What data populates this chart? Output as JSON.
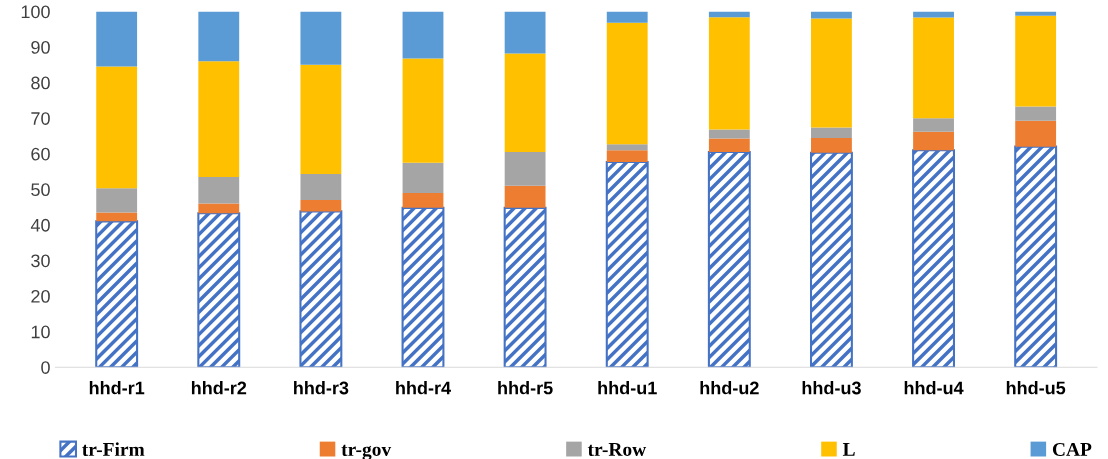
{
  "chart_data": {
    "type": "bar",
    "stacked": true,
    "categories": [
      "hhd-r1",
      "hhd-r2",
      "hhd-r3",
      "hhd-r4",
      "hhd-r5",
      "hhd-u1",
      "hhd-u2",
      "hhd-u3",
      "hhd-u4",
      "hhd-u5"
    ],
    "series": [
      {
        "name": "tr-Firm",
        "color": "#4472c4",
        "values": [
          41,
          43.3,
          43.8,
          44.8,
          44.8,
          57.7,
          60.5,
          60.3,
          61,
          62
        ]
      },
      {
        "name": "tr-gov",
        "color": "#ed7d31",
        "values": [
          2.5,
          2.7,
          3.2,
          4.2,
          6.2,
          3.3,
          3.8,
          4.1,
          5.2,
          7.3
        ]
      },
      {
        "name": "tr-Row",
        "color": "#a5a5a5",
        "values": [
          6.8,
          7.5,
          7.3,
          8.5,
          9.5,
          1.7,
          2.5,
          3,
          3.8,
          4
        ]
      },
      {
        "name": "L",
        "color": "#ffc000",
        "values": [
          34.2,
          32.5,
          30.7,
          29.3,
          27.7,
          34.1,
          31.6,
          30.6,
          28.3,
          25.5
        ]
      },
      {
        "name": "CAP",
        "color": "#5b9bd5",
        "values": [
          15.5,
          14,
          15,
          13.2,
          11.8,
          3.2,
          1.6,
          2,
          1.7,
          1.2
        ]
      }
    ],
    "ylim": [
      0,
      100
    ],
    "yticks": [
      0,
      10,
      20,
      30,
      40,
      50,
      60,
      70,
      80,
      90,
      100
    ],
    "grid": false,
    "legend": "bottom"
  }
}
